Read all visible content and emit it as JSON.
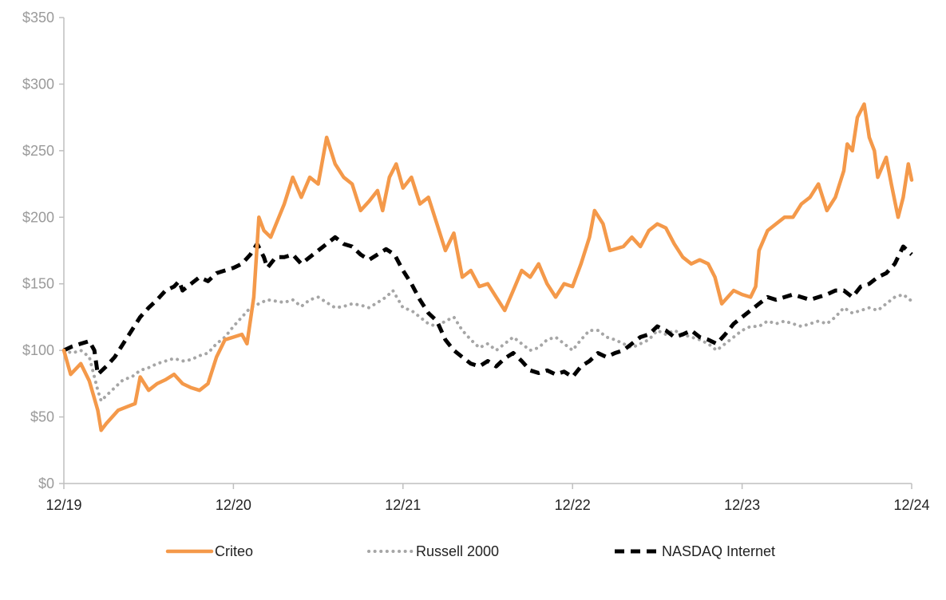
{
  "chart_data": {
    "type": "line",
    "title": "",
    "xlabel": "",
    "ylabel": "",
    "ylim": [
      0,
      350
    ],
    "yticks": [
      0,
      50,
      100,
      150,
      200,
      250,
      300,
      350
    ],
    "ytick_labels": [
      "$0",
      "$50",
      "$100",
      "$150",
      "$200",
      "$250",
      "$300",
      "$350"
    ],
    "xlim": [
      0,
      5
    ],
    "xticks": [
      0,
      1,
      2,
      3,
      4,
      5
    ],
    "xtick_labels": [
      "12/19",
      "12/20",
      "12/21",
      "12/22",
      "12/23",
      "12/24"
    ],
    "grid": false,
    "legend": "bottom",
    "series": [
      {
        "name": "Criteo",
        "color": "#F4994A",
        "style": "solid",
        "points": [
          [
            0,
            100
          ],
          [
            0.04,
            82
          ],
          [
            0.1,
            90
          ],
          [
            0.15,
            77
          ],
          [
            0.2,
            55
          ],
          [
            0.22,
            40
          ],
          [
            0.25,
            45
          ],
          [
            0.32,
            55
          ],
          [
            0.38,
            58
          ],
          [
            0.42,
            60
          ],
          [
            0.45,
            80
          ],
          [
            0.5,
            70
          ],
          [
            0.55,
            75
          ],
          [
            0.6,
            78
          ],
          [
            0.65,
            82
          ],
          [
            0.7,
            75
          ],
          [
            0.75,
            72
          ],
          [
            0.8,
            70
          ],
          [
            0.85,
            75
          ],
          [
            0.9,
            95
          ],
          [
            0.95,
            108
          ],
          [
            1.0,
            110
          ],
          [
            1.05,
            112
          ],
          [
            1.08,
            105
          ],
          [
            1.12,
            140
          ],
          [
            1.15,
            200
          ],
          [
            1.18,
            190
          ],
          [
            1.22,
            185
          ],
          [
            1.3,
            210
          ],
          [
            1.35,
            230
          ],
          [
            1.4,
            215
          ],
          [
            1.45,
            230
          ],
          [
            1.5,
            225
          ],
          [
            1.55,
            260
          ],
          [
            1.6,
            240
          ],
          [
            1.65,
            230
          ],
          [
            1.7,
            225
          ],
          [
            1.75,
            205
          ],
          [
            1.8,
            212
          ],
          [
            1.85,
            220
          ],
          [
            1.88,
            205
          ],
          [
            1.92,
            230
          ],
          [
            1.96,
            240
          ],
          [
            2.0,
            222
          ],
          [
            2.05,
            230
          ],
          [
            2.1,
            210
          ],
          [
            2.15,
            215
          ],
          [
            2.2,
            195
          ],
          [
            2.25,
            175
          ],
          [
            2.3,
            188
          ],
          [
            2.35,
            155
          ],
          [
            2.4,
            160
          ],
          [
            2.45,
            148
          ],
          [
            2.5,
            150
          ],
          [
            2.55,
            140
          ],
          [
            2.6,
            130
          ],
          [
            2.65,
            145
          ],
          [
            2.7,
            160
          ],
          [
            2.75,
            155
          ],
          [
            2.8,
            165
          ],
          [
            2.85,
            150
          ],
          [
            2.9,
            140
          ],
          [
            2.95,
            150
          ],
          [
            3.0,
            148
          ],
          [
            3.05,
            165
          ],
          [
            3.1,
            185
          ],
          [
            3.13,
            205
          ],
          [
            3.18,
            195
          ],
          [
            3.22,
            175
          ],
          [
            3.3,
            178
          ],
          [
            3.35,
            185
          ],
          [
            3.4,
            178
          ],
          [
            3.45,
            190
          ],
          [
            3.5,
            195
          ],
          [
            3.55,
            192
          ],
          [
            3.6,
            180
          ],
          [
            3.65,
            170
          ],
          [
            3.7,
            165
          ],
          [
            3.75,
            168
          ],
          [
            3.8,
            165
          ],
          [
            3.84,
            155
          ],
          [
            3.88,
            135
          ],
          [
            3.95,
            145
          ],
          [
            4.0,
            142
          ],
          [
            4.05,
            140
          ],
          [
            4.08,
            148
          ],
          [
            4.1,
            175
          ],
          [
            4.15,
            190
          ],
          [
            4.2,
            195
          ],
          [
            4.25,
            200
          ],
          [
            4.3,
            200
          ],
          [
            4.35,
            210
          ],
          [
            4.4,
            215
          ],
          [
            4.45,
            225
          ],
          [
            4.5,
            205
          ],
          [
            4.55,
            215
          ],
          [
            4.6,
            235
          ],
          [
            4.62,
            255
          ],
          [
            4.65,
            250
          ],
          [
            4.68,
            275
          ],
          [
            4.72,
            285
          ],
          [
            4.75,
            260
          ],
          [
            4.78,
            250
          ],
          [
            4.8,
            230
          ],
          [
            4.85,
            245
          ],
          [
            4.88,
            225
          ],
          [
            4.92,
            200
          ],
          [
            4.95,
            215
          ],
          [
            4.98,
            240
          ],
          [
            5.0,
            228
          ]
        ]
      },
      {
        "name": "Russell 2000",
        "color": "#A6A6A6",
        "style": "dotted",
        "points": [
          [
            0,
            100
          ],
          [
            0.05,
            98
          ],
          [
            0.1,
            100
          ],
          [
            0.15,
            95
          ],
          [
            0.2,
            70
          ],
          [
            0.22,
            62
          ],
          [
            0.25,
            66
          ],
          [
            0.3,
            72
          ],
          [
            0.35,
            78
          ],
          [
            0.4,
            80
          ],
          [
            0.45,
            85
          ],
          [
            0.5,
            87
          ],
          [
            0.55,
            90
          ],
          [
            0.6,
            92
          ],
          [
            0.65,
            94
          ],
          [
            0.7,
            92
          ],
          [
            0.75,
            93
          ],
          [
            0.8,
            96
          ],
          [
            0.85,
            98
          ],
          [
            0.9,
            105
          ],
          [
            0.95,
            110
          ],
          [
            1.0,
            118
          ],
          [
            1.05,
            125
          ],
          [
            1.1,
            132
          ],
          [
            1.15,
            135
          ],
          [
            1.2,
            138
          ],
          [
            1.3,
            136
          ],
          [
            1.35,
            138
          ],
          [
            1.4,
            133
          ],
          [
            1.45,
            138
          ],
          [
            1.5,
            140
          ],
          [
            1.55,
            136
          ],
          [
            1.6,
            132
          ],
          [
            1.65,
            133
          ],
          [
            1.7,
            135
          ],
          [
            1.75,
            134
          ],
          [
            1.8,
            132
          ],
          [
            1.85,
            136
          ],
          [
            1.9,
            140
          ],
          [
            1.94,
            145
          ],
          [
            2.0,
            132
          ],
          [
            2.05,
            130
          ],
          [
            2.1,
            125
          ],
          [
            2.15,
            120
          ],
          [
            2.2,
            118
          ],
          [
            2.25,
            122
          ],
          [
            2.3,
            125
          ],
          [
            2.35,
            115
          ],
          [
            2.4,
            108
          ],
          [
            2.45,
            102
          ],
          [
            2.5,
            105
          ],
          [
            2.55,
            100
          ],
          [
            2.6,
            105
          ],
          [
            2.65,
            110
          ],
          [
            2.7,
            105
          ],
          [
            2.75,
            100
          ],
          [
            2.8,
            102
          ],
          [
            2.85,
            108
          ],
          [
            2.9,
            110
          ],
          [
            2.95,
            105
          ],
          [
            3.0,
            100
          ],
          [
            3.05,
            108
          ],
          [
            3.1,
            115
          ],
          [
            3.15,
            115
          ],
          [
            3.2,
            110
          ],
          [
            3.25,
            108
          ],
          [
            3.3,
            105
          ],
          [
            3.35,
            102
          ],
          [
            3.4,
            105
          ],
          [
            3.45,
            108
          ],
          [
            3.5,
            115
          ],
          [
            3.55,
            112
          ],
          [
            3.6,
            115
          ],
          [
            3.65,
            112
          ],
          [
            3.7,
            110
          ],
          [
            3.75,
            108
          ],
          [
            3.8,
            105
          ],
          [
            3.85,
            100
          ],
          [
            3.9,
            105
          ],
          [
            3.95,
            110
          ],
          [
            4.0,
            115
          ],
          [
            4.05,
            118
          ],
          [
            4.1,
            118
          ],
          [
            4.15,
            122
          ],
          [
            4.2,
            120
          ],
          [
            4.25,
            122
          ],
          [
            4.3,
            120
          ],
          [
            4.35,
            118
          ],
          [
            4.4,
            120
          ],
          [
            4.45,
            122
          ],
          [
            4.5,
            120
          ],
          [
            4.55,
            125
          ],
          [
            4.6,
            132
          ],
          [
            4.65,
            128
          ],
          [
            4.7,
            130
          ],
          [
            4.75,
            132
          ],
          [
            4.8,
            130
          ],
          [
            4.85,
            135
          ],
          [
            4.9,
            140
          ],
          [
            4.95,
            142
          ],
          [
            5.0,
            137
          ]
        ]
      },
      {
        "name": "NASDAQ Internet",
        "color": "#000000",
        "style": "dashed",
        "points": [
          [
            0,
            100
          ],
          [
            0.05,
            103
          ],
          [
            0.1,
            105
          ],
          [
            0.15,
            107
          ],
          [
            0.18,
            100
          ],
          [
            0.2,
            82
          ],
          [
            0.25,
            88
          ],
          [
            0.3,
            95
          ],
          [
            0.35,
            105
          ],
          [
            0.4,
            115
          ],
          [
            0.45,
            125
          ],
          [
            0.5,
            132
          ],
          [
            0.55,
            138
          ],
          [
            0.6,
            145
          ],
          [
            0.65,
            148
          ],
          [
            0.68,
            152
          ],
          [
            0.7,
            145
          ],
          [
            0.75,
            150
          ],
          [
            0.8,
            155
          ],
          [
            0.85,
            152
          ],
          [
            0.9,
            158
          ],
          [
            0.95,
            160
          ],
          [
            1.0,
            162
          ],
          [
            1.05,
            165
          ],
          [
            1.1,
            172
          ],
          [
            1.14,
            180
          ],
          [
            1.18,
            170
          ],
          [
            1.2,
            162
          ],
          [
            1.25,
            170
          ],
          [
            1.3,
            170
          ],
          [
            1.35,
            172
          ],
          [
            1.4,
            165
          ],
          [
            1.45,
            170
          ],
          [
            1.5,
            175
          ],
          [
            1.55,
            180
          ],
          [
            1.6,
            185
          ],
          [
            1.65,
            180
          ],
          [
            1.7,
            178
          ],
          [
            1.75,
            172
          ],
          [
            1.8,
            168
          ],
          [
            1.85,
            172
          ],
          [
            1.9,
            176
          ],
          [
            1.95,
            172
          ],
          [
            2.0,
            160
          ],
          [
            2.05,
            150
          ],
          [
            2.1,
            138
          ],
          [
            2.15,
            128
          ],
          [
            2.2,
            122
          ],
          [
            2.25,
            108
          ],
          [
            2.3,
            100
          ],
          [
            2.35,
            95
          ],
          [
            2.4,
            90
          ],
          [
            2.45,
            88
          ],
          [
            2.5,
            92
          ],
          [
            2.55,
            88
          ],
          [
            2.6,
            94
          ],
          [
            2.65,
            98
          ],
          [
            2.7,
            92
          ],
          [
            2.75,
            85
          ],
          [
            2.8,
            83
          ],
          [
            2.85,
            85
          ],
          [
            2.9,
            82
          ],
          [
            2.95,
            84
          ],
          [
            3.0,
            80
          ],
          [
            3.05,
            88
          ],
          [
            3.1,
            92
          ],
          [
            3.15,
            98
          ],
          [
            3.2,
            95
          ],
          [
            3.25,
            98
          ],
          [
            3.3,
            100
          ],
          [
            3.35,
            105
          ],
          [
            3.4,
            110
          ],
          [
            3.45,
            112
          ],
          [
            3.5,
            118
          ],
          [
            3.55,
            115
          ],
          [
            3.6,
            110
          ],
          [
            3.65,
            112
          ],
          [
            3.7,
            115
          ],
          [
            3.75,
            110
          ],
          [
            3.8,
            108
          ],
          [
            3.85,
            105
          ],
          [
            3.9,
            112
          ],
          [
            3.95,
            120
          ],
          [
            4.0,
            125
          ],
          [
            4.05,
            130
          ],
          [
            4.1,
            135
          ],
          [
            4.15,
            140
          ],
          [
            4.2,
            138
          ],
          [
            4.25,
            140
          ],
          [
            4.3,
            142
          ],
          [
            4.35,
            140
          ],
          [
            4.4,
            138
          ],
          [
            4.45,
            140
          ],
          [
            4.5,
            142
          ],
          [
            4.55,
            145
          ],
          [
            4.6,
            145
          ],
          [
            4.65,
            140
          ],
          [
            4.7,
            148
          ],
          [
            4.75,
            150
          ],
          [
            4.8,
            155
          ],
          [
            4.85,
            158
          ],
          [
            4.9,
            165
          ],
          [
            4.95,
            178
          ],
          [
            5.0,
            172
          ]
        ]
      }
    ]
  }
}
